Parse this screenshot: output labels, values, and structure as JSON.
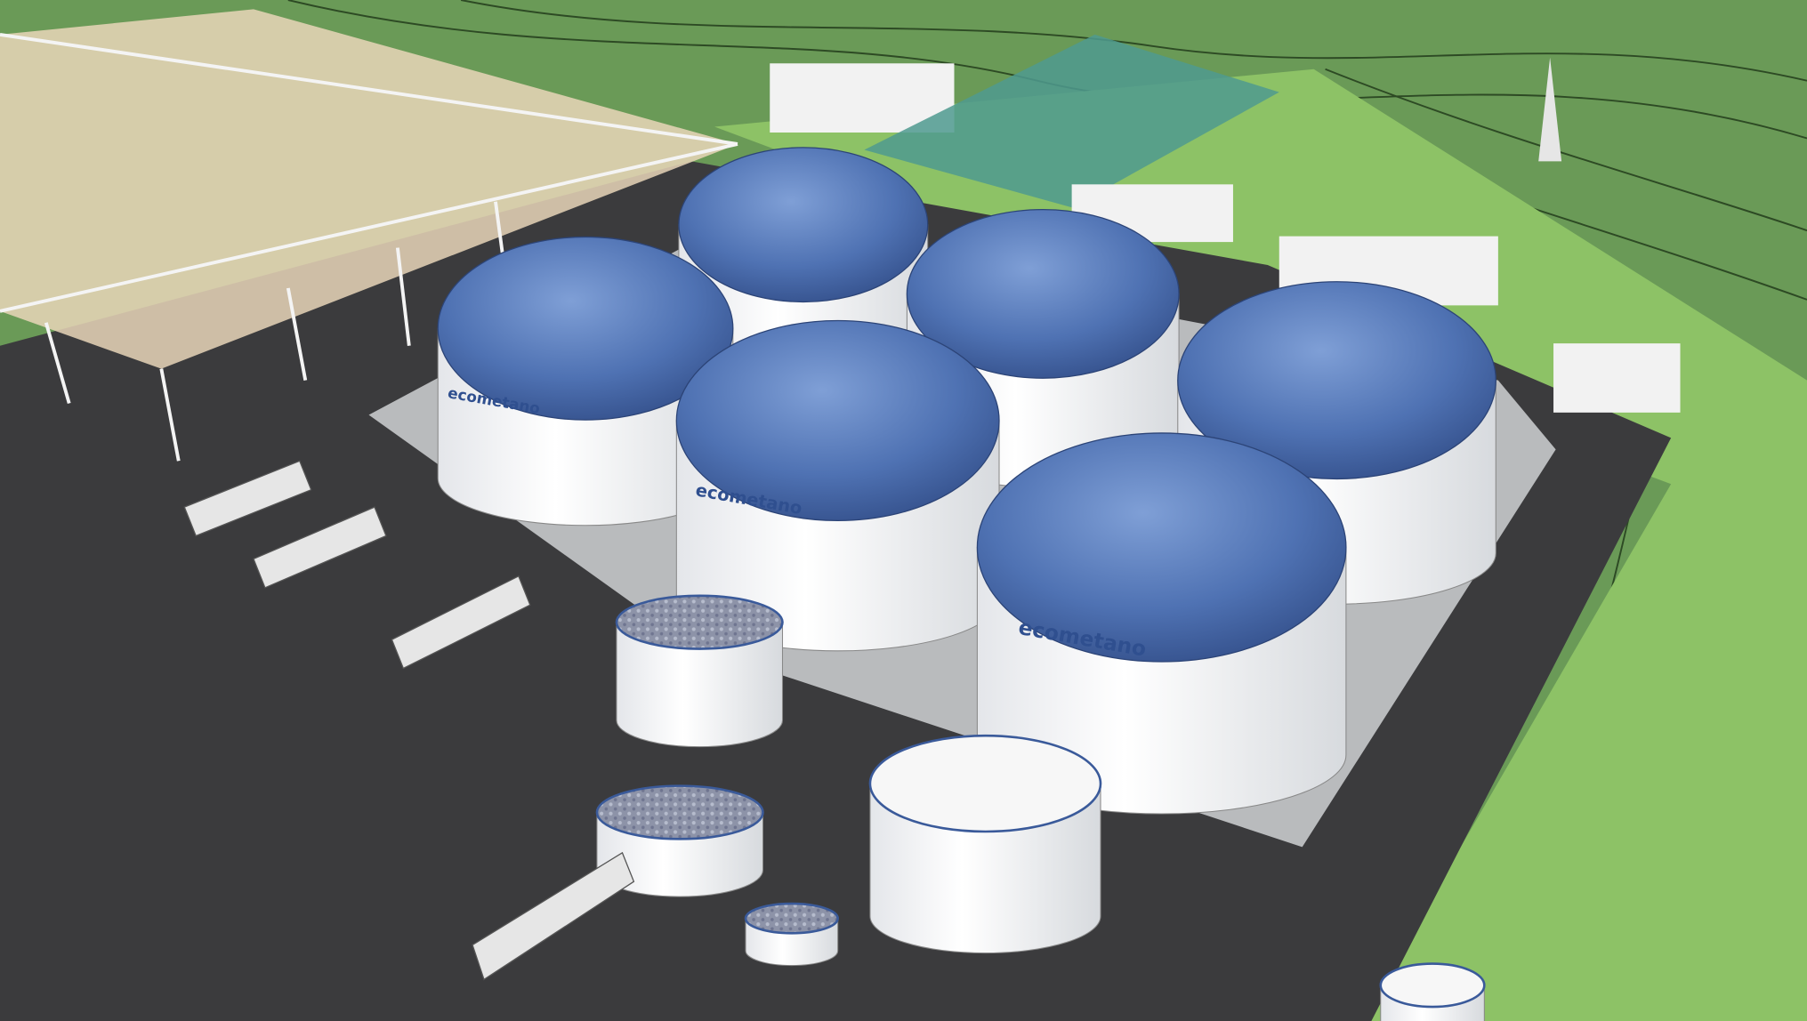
{
  "tank_labels": [
    "ecometano",
    "ecometano",
    "ecometano"
  ]
}
